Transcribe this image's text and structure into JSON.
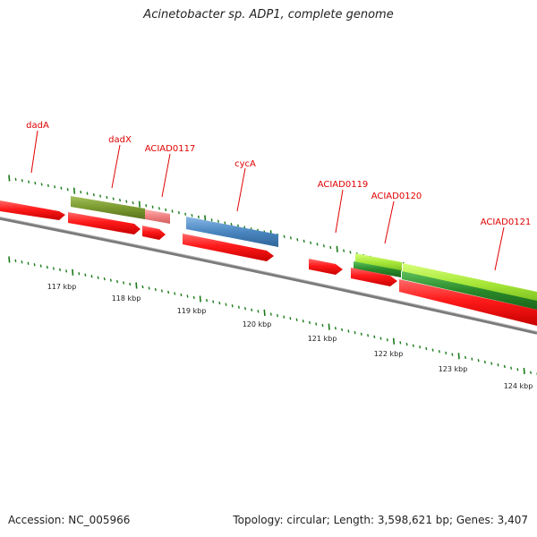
{
  "title": "Acinetobacter sp. ADP1, complete genome",
  "footer": {
    "accession": "Accession: NC_005966",
    "summary": "Topology: circular; Length: 3,598,621 bp; Genes: 3,407"
  },
  "colors": {
    "gene_label": "#e00000",
    "backbone": "#808080",
    "tick": "#1a7a1a",
    "red_feature": "#ff1a1a",
    "olive_feature": "#7a9a30",
    "pink_feature": "#f08080",
    "blue_feature": "#4a86c0",
    "lime_feature": "#a8e83a",
    "green_feature": "#2a8a2a"
  },
  "gene_labels": [
    "dadA",
    "dadX",
    "ACIAD0117",
    "cycA",
    "ACIAD0119",
    "ACIAD0120",
    "ACIAD0121"
  ],
  "kbp_labels": [
    "117 kbp",
    "118 kbp",
    "119 kbp",
    "120 kbp",
    "121 kbp",
    "122 kbp",
    "123 kbp",
    "124 kbp"
  ]
}
